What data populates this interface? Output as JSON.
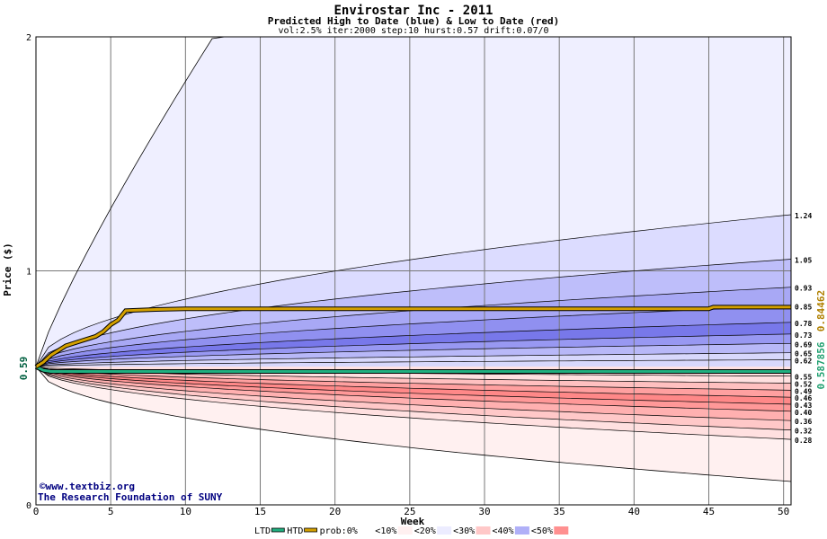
{
  "chart_data": {
    "type": "area",
    "title": "Envirostar Inc - 2011",
    "subtitle": "Predicted High to Date (blue) &  Low to Date (red)",
    "params": "vol:2.5% iter:2000 step:10 hurst:0.57 drift:0.07/0",
    "xlabel": "Week",
    "ylabel": "Price ($)",
    "xlim": [
      0,
      50.5
    ],
    "ylim": [
      0,
      2
    ],
    "x_ticks": [
      0,
      5,
      10,
      15,
      20,
      25,
      30,
      35,
      40,
      45,
      50
    ],
    "y_ticks": [
      0,
      1,
      2
    ],
    "current_price_label": "0.59",
    "current_price": 0.59,
    "htd_value_label": "0.84462",
    "htd_value": 0.84462,
    "ltd_value_label": "0.587856",
    "ltd_value": 0.587856,
    "credits": [
      "©www.textbiz.org",
      "The Research Foundation of SUNY"
    ],
    "high_end_labels": [
      "1.24",
      "1.05",
      "0.93",
      "0.85",
      "0.78",
      "0.73",
      "0.69",
      "0.65",
      "0.62"
    ],
    "high_end_values": [
      1.24,
      1.05,
      0.93,
      0.85,
      0.78,
      0.73,
      0.69,
      0.65,
      0.62
    ],
    "low_end_labels": [
      "0.55",
      "0.52",
      "0.49",
      "0.46",
      "0.43",
      "0.40",
      "0.36",
      "0.32",
      "0.28"
    ],
    "low_end_values": [
      0.55,
      0.52,
      0.49,
      0.46,
      0.43,
      0.4,
      0.36,
      0.32,
      0.28
    ],
    "high_band_colors": [
      "#efefff",
      "#dcdcff",
      "#bebefa",
      "#a8a8f5",
      "#9090f0",
      "#7878ea",
      "#9898f2",
      "#b8b8f8",
      "#d8d8fc"
    ],
    "low_band_colors": [
      "#fff0f0",
      "#ffe0e0",
      "#ffc8c8",
      "#ffb0b0",
      "#ff9898",
      "#ff8888",
      "#ffa0a0",
      "#ffc0c0",
      "#ffe0e0"
    ],
    "htd_color": "#d4a000",
    "ltd_color": "#20b080",
    "htd_path": {
      "x": [
        0,
        0.5,
        1,
        1.5,
        2,
        3,
        4,
        4.5,
        5,
        5.5,
        6,
        8,
        10,
        45,
        45.3,
        50.5
      ],
      "y": [
        0.59,
        0.61,
        0.64,
        0.66,
        0.68,
        0.7,
        0.72,
        0.74,
        0.77,
        0.79,
        0.83,
        0.835,
        0.838,
        0.838,
        0.845,
        0.845
      ]
    },
    "ltd_path": {
      "x": [
        0,
        0.5,
        1,
        50.5
      ],
      "y": [
        0.59,
        0.575,
        0.57,
        0.57
      ]
    },
    "legend": [
      {
        "label": "LTD",
        "kind": "line",
        "color": "#20b080"
      },
      {
        "label": "HTD",
        "kind": "line",
        "color": "#d4a000"
      },
      {
        "label": "prob:0%",
        "kind": "box",
        "color": "#ffffff"
      },
      {
        "label": "<10%",
        "kind": "box",
        "color": "#fff0f0"
      },
      {
        "label": "<20%",
        "kind": "box",
        "color": "#ececff"
      },
      {
        "label": "<30%",
        "kind": "box",
        "color": "#ffc8c8"
      },
      {
        "label": "<40%",
        "kind": "box",
        "color": "#b0b0f8"
      },
      {
        "label": "<50%",
        "kind": "box",
        "color": "#ff9090"
      }
    ]
  }
}
